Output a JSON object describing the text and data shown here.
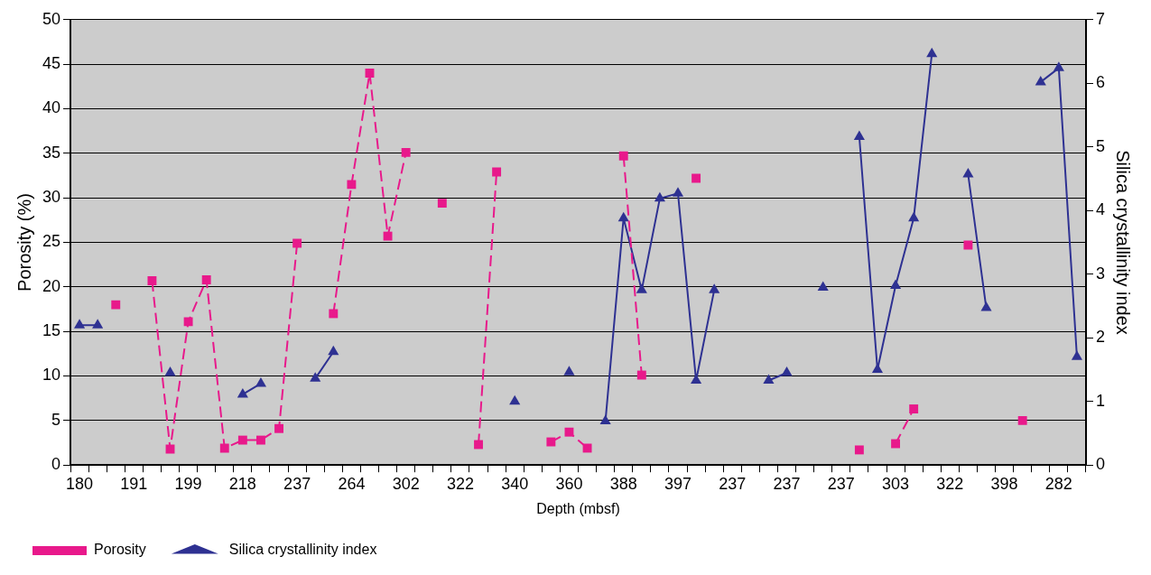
{
  "chart_data": {
    "type": "line",
    "xlabel": "Depth (mbsf)",
    "ylabel": "Porosity (%)",
    "y2label": "Silica crystallinity index",
    "categories": [
      "180",
      null,
      null,
      "191",
      null,
      null,
      "199",
      null,
      null,
      "218",
      null,
      null,
      "237",
      null,
      null,
      "264",
      null,
      null,
      "302",
      null,
      null,
      "322",
      null,
      null,
      "340",
      null,
      null,
      "360",
      null,
      null,
      "388",
      null,
      null,
      "397",
      null,
      null,
      "237",
      null,
      null,
      "237",
      null,
      null,
      "237",
      null,
      null,
      "303",
      null,
      null,
      "322",
      null,
      null,
      "398",
      null,
      null,
      "282",
      null
    ],
    "series": [
      {
        "name": "Porosity",
        "color": "#e8198b",
        "marker": "square",
        "line_style": "dashed",
        "values": [
          null,
          null,
          18.0,
          null,
          20.7,
          1.8,
          16.1,
          20.8,
          1.9,
          2.8,
          2.8,
          4.1,
          24.9,
          null,
          17.0,
          31.5,
          44.0,
          25.7,
          35.1,
          null,
          29.4,
          null,
          2.3,
          32.9,
          null,
          null,
          2.6,
          3.7,
          1.9,
          null,
          34.7,
          10.1,
          null,
          null,
          32.2,
          null,
          null,
          null,
          null,
          null,
          null,
          null,
          null,
          1.7,
          null,
          2.4,
          6.3,
          null,
          null,
          24.7,
          null,
          null,
          5.0,
          null,
          null,
          null
        ]
      },
      {
        "name": "Silica crystallinity index",
        "color": "#2e3192",
        "marker": "triangle",
        "line_style": "solid",
        "axis": "y2",
        "values": [
          2.2,
          2.2,
          null,
          null,
          null,
          1.45,
          null,
          null,
          null,
          1.11,
          1.28,
          null,
          null,
          1.36,
          1.78,
          null,
          null,
          null,
          null,
          null,
          null,
          null,
          null,
          null,
          1.0,
          null,
          null,
          1.46,
          null,
          0.69,
          3.88,
          2.75,
          4.19,
          4.27,
          1.33,
          2.75,
          null,
          null,
          1.33,
          1.45,
          null,
          2.79,
          null,
          5.16,
          1.5,
          2.82,
          3.88,
          6.46,
          null,
          4.57,
          2.47,
          null,
          null,
          6.02,
          6.24,
          1.7
        ]
      }
    ],
    "ylim": [
      0,
      50
    ],
    "yticks": [
      0,
      5,
      10,
      15,
      20,
      25,
      30,
      35,
      40,
      45,
      50
    ],
    "y2lim": [
      0,
      7
    ],
    "y2ticks": [
      0,
      1,
      2,
      3,
      4,
      5,
      6,
      7
    ],
    "grid": "y",
    "legend": "bottom"
  }
}
